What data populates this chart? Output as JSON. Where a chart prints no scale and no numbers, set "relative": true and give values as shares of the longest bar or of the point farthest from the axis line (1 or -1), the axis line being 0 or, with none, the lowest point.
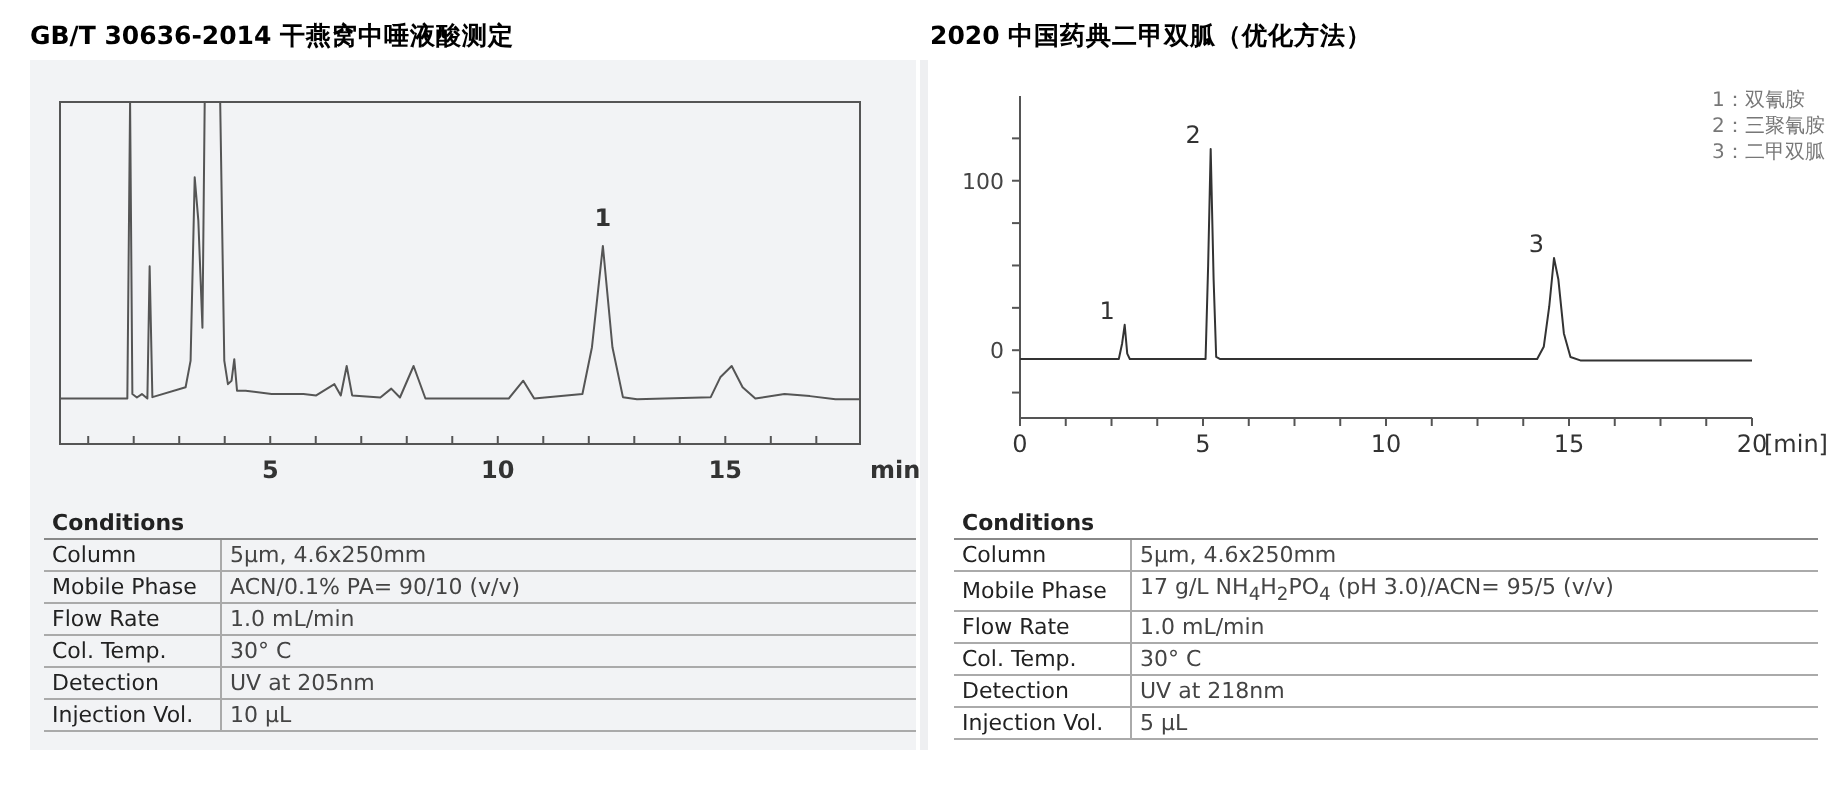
{
  "chart_data": [
    {
      "type": "line",
      "title": "GB/T 30636-2014 干燕窝中唾液酸测定",
      "xlabel": "min",
      "relative": true,
      "tick_labels": "x",
      "color": "#555555",
      "x": [
        0.38,
        1.86,
        1.92,
        1.97,
        2.07,
        2.18,
        2.3,
        2.35,
        2.41,
        3.14,
        3.25,
        3.34,
        3.42,
        3.51,
        3.56,
        3.62,
        3.9,
        3.99,
        4.07,
        4.15,
        4.21,
        4.27,
        4.46,
        5.03,
        5.73,
        6.01,
        6.41,
        6.55,
        6.68,
        6.8,
        7.42,
        7.66,
        7.85,
        8.15,
        8.41,
        10.24,
        10.56,
        10.8,
        11.86,
        12.07,
        12.31,
        12.52,
        12.75,
        13.06,
        14.68,
        14.89,
        15.14,
        15.38,
        15.66,
        16.3,
        16.86,
        17.42,
        17.96
      ],
      "values": [
        0.133,
        0.133,
        1,
        0.146,
        0.136,
        0.146,
        0.133,
        0.52,
        0.137,
        0.166,
        0.244,
        0.78,
        0.653,
        0.34,
        1,
        1,
        1,
        0.244,
        0.175,
        0.185,
        0.248,
        0.156,
        0.156,
        0.146,
        0.146,
        0.142,
        0.175,
        0.142,
        0.228,
        0.142,
        0.136,
        0.162,
        0.136,
        0.228,
        0.133,
        0.133,
        0.185,
        0.133,
        0.146,
        0.283,
        0.579,
        0.283,
        0.137,
        0.131,
        0.137,
        0.195,
        0.228,
        0.166,
        0.133,
        0.146,
        0.14,
        0.131,
        0.131
      ],
      "xlim": [
        0.38,
        17.96
      ],
      "xticks": [
        {
          "value": 1,
          "label": null
        },
        {
          "value": 2,
          "label": null
        },
        {
          "value": 3,
          "label": null
        },
        {
          "value": 4,
          "label": null
        },
        5,
        {
          "value": 6,
          "label": null
        },
        {
          "value": 7,
          "label": null
        },
        {
          "value": 8,
          "label": null
        },
        {
          "value": 9,
          "label": null
        },
        10,
        {
          "value": 11,
          "label": null
        },
        {
          "value": 12,
          "label": null
        },
        {
          "value": 13,
          "label": null
        },
        {
          "value": 14,
          "label": null
        },
        15,
        {
          "value": 16,
          "label": null
        },
        {
          "value": 17,
          "label": null
        }
      ],
      "annotations": [
        {
          "text": "1",
          "x": 12.31,
          "y": 0.579
        },
        "Conditions",
        "Column",
        "5µm, 4.6x250mm",
        "Mobile Phase",
        "ACN/0.1% PA= 90/10 (v/v)",
        "Flow Rate",
        "1.0 mL/min",
        "Col. Temp.",
        "30° C",
        "Detection",
        "UV at 205nm",
        "Injection Vol.",
        "10 µL"
      ]
    },
    {
      "type": "line",
      "title": "2020 中国药典二甲双胍（优化方法）",
      "xlabel": "[min]",
      "color": "#333333",
      "x": [
        0,
        2.7,
        2.79,
        2.86,
        2.93,
        3.0,
        5.07,
        5.14,
        5.21,
        5.29,
        5.36,
        5.47,
        14.13,
        14.31,
        14.46,
        14.59,
        14.71,
        14.86,
        15.04,
        15.31,
        20
      ],
      "values": [
        -5.2,
        -5.2,
        4,
        15,
        -2,
        -5.2,
        -5.2,
        49.6,
        118.7,
        41.7,
        -4,
        -5.2,
        -5.2,
        2,
        25.8,
        54.4,
        41.7,
        9.9,
        -4,
        -6,
        -6
      ],
      "xlim": [
        0,
        20
      ],
      "ylim": [
        -40,
        150
      ],
      "xticks": [
        0,
        {
          "value": 1.25,
          "label": null
        },
        {
          "value": 2.5,
          "label": null
        },
        {
          "value": 3.75,
          "label": null
        },
        5,
        {
          "value": 6.25,
          "label": null
        },
        {
          "value": 7.5,
          "label": null
        },
        {
          "value": 8.75,
          "label": null
        },
        10,
        {
          "value": 11.25,
          "label": null
        },
        {
          "value": 12.5,
          "label": null
        },
        {
          "value": 13.75,
          "label": null
        },
        15,
        {
          "value": 16.25,
          "label": null
        },
        {
          "value": 17.5,
          "label": null
        },
        {
          "value": 18.75,
          "label": null
        },
        20
      ],
      "yticks": [
        {
          "value": -25,
          "label": null
        },
        0,
        {
          "value": 25,
          "label": null
        },
        {
          "value": 50,
          "label": null
        },
        {
          "value": 75,
          "label": null
        },
        100,
        {
          "value": 125,
          "label": null
        }
      ],
      "annotations": [
        {
          "text": "1",
          "x": 2.86,
          "y": 15
        },
        {
          "text": "2",
          "x": 5.21,
          "y": 118.7
        },
        {
          "text": "3",
          "x": 14.59,
          "y": 54.4
        },
        "1：双氰胺",
        "2：三聚氰胺",
        "3：二甲双胍",
        "Conditions",
        "Column",
        "5µm, 4.6x250mm",
        "Mobile Phase",
        "17 g/L NH$_{4}$H$_{2}$PO$_{4}$ (pH 3.0)/ACN= 95/5 (v/v)",
        "Flow Rate",
        "1.0 mL/min",
        "Col. Temp.",
        "30° C",
        "Detection",
        "UV at 218nm",
        "Injection Vol.",
        "5 µL"
      ]
    }
  ]
}
